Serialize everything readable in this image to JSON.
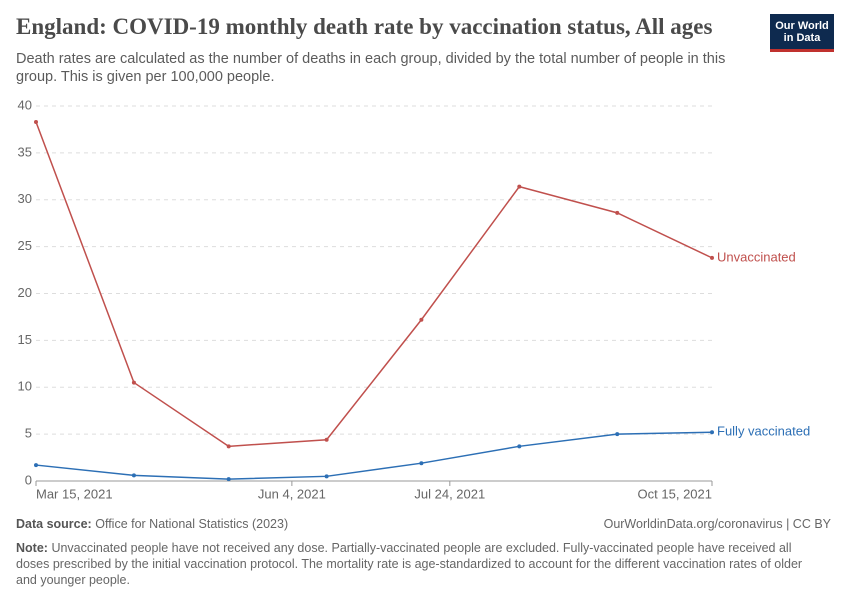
{
  "chart_data": {
    "type": "line",
    "title": "England: COVID-19 monthly death rate by vaccination status, All ages",
    "subtitle": "Death rates are calculated as the number of deaths in each group, divided by the total number of people in this group. This is given per 100,000 people.",
    "logo": [
      "Our World",
      "in Data"
    ],
    "x": [
      "2021-03-15",
      "2021-04-15",
      "2021-05-15",
      "2021-06-15",
      "2021-07-15",
      "2021-08-15",
      "2021-09-15",
      "2021-10-15"
    ],
    "series": [
      {
        "name": "Unvaccinated",
        "color": "#c0504d",
        "values": [
          38.3,
          10.5,
          3.7,
          4.4,
          17.2,
          31.4,
          28.6,
          23.8
        ]
      },
      {
        "name": "Fully vaccinated",
        "color": "#2c6fb5",
        "values": [
          1.7,
          0.6,
          0.2,
          0.5,
          1.9,
          3.7,
          5.0,
          5.2
        ]
      }
    ],
    "xlim": [
      "2021-03-15",
      "2021-10-15"
    ],
    "xticks": [
      {
        "value": "2021-03-15",
        "label": "Mar 15, 2021"
      },
      {
        "value": "2021-06-04",
        "label": "Jun 4, 2021"
      },
      {
        "value": "2021-07-24",
        "label": "Jul 24, 2021"
      },
      {
        "value": "2021-10-15",
        "label": "Oct 15, 2021"
      }
    ],
    "ylim": [
      0,
      40
    ],
    "yticks": [
      0,
      5,
      10,
      15,
      20,
      25,
      30,
      35,
      40
    ],
    "grid": true,
    "source_label": "Data source:",
    "source": "Office for National Statistics (2023)",
    "credit": "OurWorldinData.org/coronavirus | CC BY",
    "note_label": "Note:",
    "note": "Unvaccinated people have not received any dose. Partially-vaccinated people are excluded. Fully-vaccinated people have received all doses prescribed by the initial vaccination protocol. The mortality rate is age-standardized to account for the different vaccination rates of older and younger people."
  }
}
